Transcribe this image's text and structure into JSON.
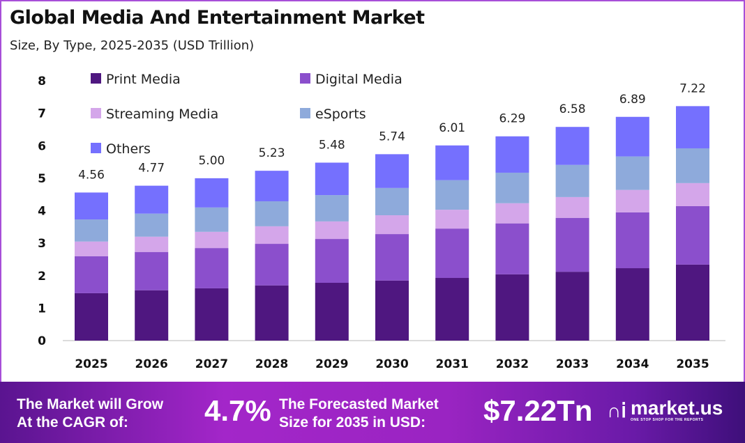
{
  "chart_data": {
    "type": "bar",
    "stacked": true,
    "title": "Global Media And Entertainment Market",
    "subtitle": "Size, By Type, 2025-2035 (USD Trillion)",
    "categories": [
      "2025",
      "2026",
      "2027",
      "2028",
      "2029",
      "2030",
      "2031",
      "2032",
      "2033",
      "2034",
      "2035"
    ],
    "series": [
      {
        "name": "Print Media",
        "color": "#4f1780",
        "values": [
          1.46,
          1.55,
          1.61,
          1.7,
          1.78,
          1.85,
          1.93,
          2.04,
          2.12,
          2.23,
          2.34
        ]
      },
      {
        "name": "Digital Media",
        "color": "#8b4fcc",
        "values": [
          1.14,
          1.18,
          1.24,
          1.28,
          1.35,
          1.43,
          1.52,
          1.57,
          1.66,
          1.72,
          1.8
        ]
      },
      {
        "name": "Streaming Media",
        "color": "#d4a6ea",
        "values": [
          0.45,
          0.47,
          0.5,
          0.54,
          0.54,
          0.58,
          0.58,
          0.62,
          0.64,
          0.69,
          0.71
        ]
      },
      {
        "name": "eSports",
        "color": "#8eaadb",
        "values": [
          0.68,
          0.71,
          0.75,
          0.77,
          0.81,
          0.84,
          0.91,
          0.94,
          0.99,
          1.03,
          1.07
        ]
      },
      {
        "name": "Others",
        "color": "#7570fe",
        "values": [
          0.83,
          0.86,
          0.9,
          0.94,
          1.0,
          1.04,
          1.07,
          1.12,
          1.17,
          1.22,
          1.3
        ]
      }
    ],
    "totals": [
      "4.56",
      "4.77",
      "5.00",
      "5.23",
      "5.48",
      "5.74",
      "6.01",
      "6.29",
      "6.58",
      "6.89",
      "7.22"
    ],
    "ylim": [
      0,
      8
    ],
    "yticks": [
      "0",
      "1",
      "2",
      "3",
      "4",
      "5",
      "6",
      "7",
      "8"
    ],
    "grid": false,
    "legend": "top-left"
  },
  "footer": {
    "cagr_label_1": "The Market will Grow",
    "cagr_label_2": "At the CAGR of:",
    "cagr_value": "4.7%",
    "forecast_label_1": "The Forecasted Market",
    "forecast_label_2": "Size for 2035 in USD:",
    "forecast_value": "$7.22Tn",
    "logo_text": "market.us",
    "logo_tagline": "ONE STOP SHOP FOR THE REPORTS"
  }
}
